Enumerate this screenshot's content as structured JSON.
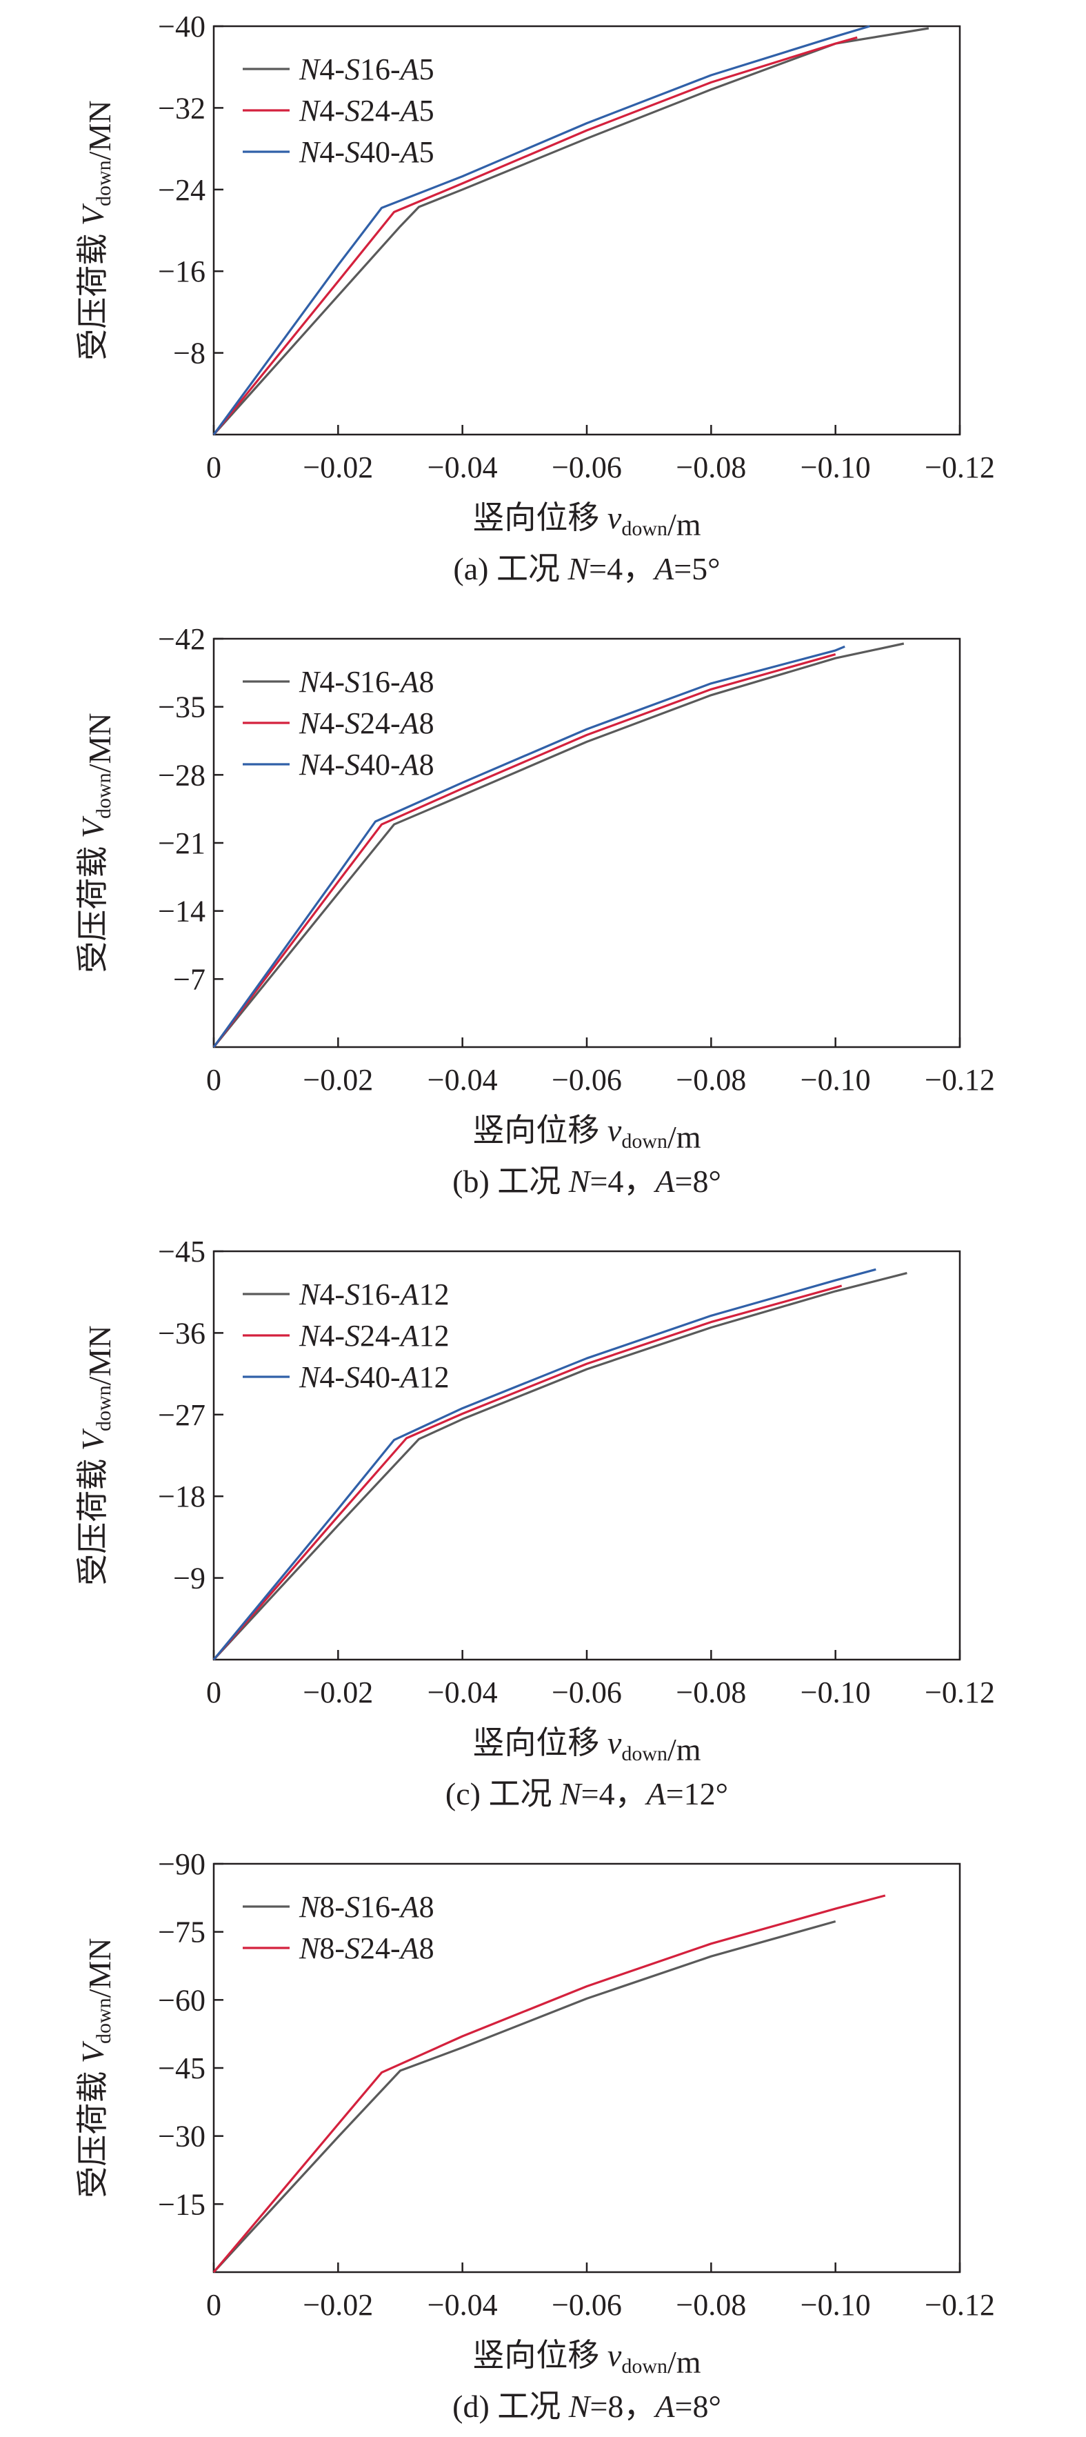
{
  "chart_data": [
    {
      "type": "line",
      "caption": "(a) 工况 N=4，A=5°",
      "xlabel": "竖向位移 v_down/m",
      "ylabel": "受压荷载 V_down/MN",
      "xlim": [
        0,
        -0.12
      ],
      "ylim": [
        0,
        -40
      ],
      "x_ticks": [
        "0",
        "−0.02",
        "−0.04",
        "−0.06",
        "−0.08",
        "−0.10",
        "−0.12"
      ],
      "y_ticks": [
        "−8",
        "−16",
        "−24",
        "−32",
        "−40"
      ],
      "y_tick_values": [
        -8,
        -16,
        -24,
        -32,
        -40
      ],
      "legend_position": "top-left",
      "series": [
        {
          "name": "N4-S16-A5",
          "color": "#5a5a5a",
          "x": [
            0,
            -0.01,
            -0.02,
            -0.03,
            -0.033,
            -0.04,
            -0.06,
            -0.08,
            -0.1,
            -0.115
          ],
          "y": [
            0,
            -6.8,
            -13.6,
            -20.4,
            -22.3,
            -24.0,
            -29.0,
            -33.8,
            -38.3,
            -39.8
          ]
        },
        {
          "name": "N4-S24-A5",
          "color": "#d4213d",
          "x": [
            0,
            -0.01,
            -0.02,
            -0.029,
            -0.04,
            -0.06,
            -0.08,
            -0.1,
            -0.1035
          ],
          "y": [
            0,
            -7.5,
            -15.0,
            -21.8,
            -24.6,
            -29.8,
            -34.5,
            -38.3,
            -38.9
          ]
        },
        {
          "name": "N4-S40-A5",
          "color": "#3060a8",
          "x": [
            0,
            -0.01,
            -0.02,
            -0.027,
            -0.04,
            -0.06,
            -0.08,
            -0.1,
            -0.1055
          ],
          "y": [
            0,
            -8.3,
            -16.6,
            -22.2,
            -25.3,
            -30.5,
            -35.2,
            -39.0,
            -40.0
          ]
        }
      ]
    },
    {
      "type": "line",
      "caption": "(b) 工况 N=4，A=8°",
      "xlabel": "竖向位移 v_down/m",
      "ylabel": "受压荷载 V_down/MN",
      "xlim": [
        0,
        -0.12
      ],
      "ylim": [
        0,
        -42
      ],
      "x_ticks": [
        "0",
        "−0.02",
        "−0.04",
        "−0.06",
        "−0.08",
        "−0.10",
        "−0.12"
      ],
      "y_ticks": [
        "−7",
        "−14",
        "−21",
        "−28",
        "−35",
        "−42"
      ],
      "y_tick_values": [
        -7,
        -14,
        -21,
        -28,
        -35,
        -42
      ],
      "legend_position": "top-left",
      "series": [
        {
          "name": "N4-S16-A8",
          "color": "#5a5a5a",
          "x": [
            0,
            -0.01,
            -0.02,
            -0.029,
            -0.04,
            -0.06,
            -0.08,
            -0.1,
            -0.111
          ],
          "y": [
            0,
            -7.9,
            -15.8,
            -22.9,
            -25.9,
            -31.4,
            -36.2,
            -40.0,
            -41.5
          ]
        },
        {
          "name": "N4-S24-A8",
          "color": "#d4213d",
          "x": [
            0,
            -0.01,
            -0.02,
            -0.027,
            -0.04,
            -0.06,
            -0.08,
            -0.1
          ],
          "y": [
            0,
            -8.5,
            -17.0,
            -22.9,
            -26.6,
            -32.1,
            -36.8,
            -40.4
          ]
        },
        {
          "name": "N4-S40-A8",
          "color": "#3060a8",
          "x": [
            0,
            -0.01,
            -0.02,
            -0.026,
            -0.04,
            -0.06,
            -0.08,
            -0.1,
            -0.1015
          ],
          "y": [
            0,
            -8.9,
            -17.8,
            -23.2,
            -27.2,
            -32.7,
            -37.4,
            -40.8,
            -41.2
          ]
        }
      ]
    },
    {
      "type": "line",
      "caption": "(c) 工况 N=4，A=12°",
      "xlabel": "竖向位移 v_down/m",
      "ylabel": "受压荷载 V_down/MN",
      "xlim": [
        0,
        -0.12
      ],
      "ylim": [
        0,
        -45
      ],
      "x_ticks": [
        "0",
        "−0.02",
        "−0.04",
        "−0.06",
        "−0.08",
        "−0.10",
        "−0.12"
      ],
      "y_ticks": [
        "−9",
        "−18",
        "−27",
        "−36",
        "−45"
      ],
      "y_tick_values": [
        -9,
        -18,
        -27,
        -36,
        -45
      ],
      "legend_position": "top-left",
      "series": [
        {
          "name": "N4-S16-A12",
          "color": "#5a5a5a",
          "x": [
            0,
            -0.01,
            -0.02,
            -0.033,
            -0.04,
            -0.06,
            -0.08,
            -0.1,
            -0.1115
          ],
          "y": [
            0,
            -7.4,
            -14.8,
            -24.3,
            -26.5,
            -32.0,
            -36.6,
            -40.6,
            -42.6
          ]
        },
        {
          "name": "N4-S24-A12",
          "color": "#d4213d",
          "x": [
            0,
            -0.01,
            -0.02,
            -0.031,
            -0.04,
            -0.06,
            -0.08,
            -0.1,
            -0.101
          ],
          "y": [
            0,
            -7.9,
            -15.8,
            -24.4,
            -27.1,
            -32.6,
            -37.2,
            -41.0,
            -41.2
          ]
        },
        {
          "name": "N4-S40-A12",
          "color": "#3060a8",
          "x": [
            0,
            -0.01,
            -0.02,
            -0.029,
            -0.04,
            -0.06,
            -0.08,
            -0.1,
            -0.1065
          ],
          "y": [
            0,
            -8.3,
            -16.6,
            -24.2,
            -27.7,
            -33.2,
            -37.9,
            -41.8,
            -43.0
          ]
        }
      ]
    },
    {
      "type": "line",
      "caption": "(d) 工况 N=8，A=8°",
      "xlabel": "竖向位移 v_down/m",
      "ylabel": "受压荷载 V_down/MN",
      "xlim": [
        0,
        -0.12
      ],
      "ylim": [
        0,
        -90
      ],
      "x_ticks": [
        "0",
        "−0.02",
        "−0.04",
        "−0.06",
        "−0.08",
        "−0.10",
        "−0.12"
      ],
      "y_ticks": [
        "−15",
        "−30",
        "−45",
        "−60",
        "−75",
        "−90"
      ],
      "y_tick_values": [
        -15,
        -30,
        -45,
        -60,
        -75,
        -90
      ],
      "legend_position": "top-left",
      "series": [
        {
          "name": "N8-S16-A8",
          "color": "#5a5a5a",
          "x": [
            0,
            -0.01,
            -0.02,
            -0.03,
            -0.04,
            -0.06,
            -0.08,
            -0.1
          ],
          "y": [
            0,
            -14.9,
            -29.8,
            -44.4,
            -49.5,
            -60.3,
            -69.6,
            -77.3
          ]
        },
        {
          "name": "N8-S24-A8",
          "color": "#d4213d",
          "x": [
            0,
            -0.01,
            -0.02,
            -0.027,
            -0.04,
            -0.06,
            -0.08,
            -0.1,
            -0.108
          ],
          "y": [
            0,
            -16.3,
            -32.6,
            -44.0,
            -52.0,
            -63.0,
            -72.4,
            -80.1,
            -83.0
          ]
        }
      ]
    }
  ]
}
